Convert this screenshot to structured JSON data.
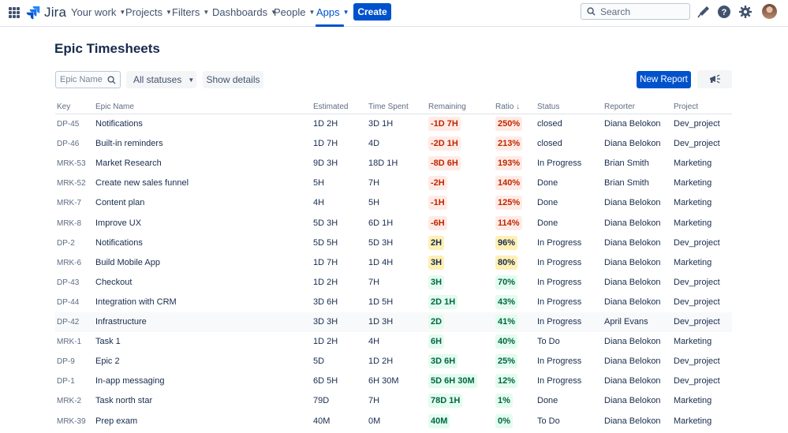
{
  "nav": {
    "logo_text": "Jira",
    "items": [
      "Your work",
      "Projects",
      "Filters",
      "Dashboards",
      "People",
      "Apps"
    ],
    "create_label": "Create",
    "search_placeholder": "Search"
  },
  "page": {
    "title": "Epic Timesheets",
    "filter_placeholder": "Epic Name",
    "status_filter": "All statuses",
    "show_details_label": "Show details",
    "new_report_label": "New Report"
  },
  "colors": {
    "brand": "#0052cc",
    "red": "#bf2600",
    "yellow": "#fff0b3",
    "green": "#006644"
  },
  "table": {
    "headers": [
      "Key",
      "Epic Name",
      "Estimated",
      "Time Spent",
      "Remaining",
      "Ratio ↓",
      "Status",
      "Reporter",
      "Project"
    ],
    "rows": [
      {
        "key": "DP-45",
        "name": "Notifications",
        "est": "1D 2H",
        "spent": "3D 1H",
        "rem": "-1D 7H",
        "ratio": "250%",
        "tone": "red",
        "status": "closed",
        "reporter": "Diana Belokon",
        "project": "Dev_project"
      },
      {
        "key": "DP-46",
        "name": "Built-in reminders",
        "est": "1D 7H",
        "spent": "4D",
        "rem": "-2D 1H",
        "ratio": "213%",
        "tone": "red",
        "status": "closed",
        "reporter": "Diana Belokon",
        "project": "Dev_project"
      },
      {
        "key": "MRK-53",
        "name": "Market Research",
        "est": "9D 3H",
        "spent": "18D 1H",
        "rem": "-8D 6H",
        "ratio": "193%",
        "tone": "red",
        "status": "In Progress",
        "reporter": "Brian Smith",
        "project": "Marketing"
      },
      {
        "key": "MRK-52",
        "name": "Create new sales funnel",
        "est": "5H",
        "spent": "7H",
        "rem": "-2H",
        "ratio": "140%",
        "tone": "red",
        "status": "Done",
        "reporter": "Brian Smith",
        "project": "Marketing"
      },
      {
        "key": "MRK-7",
        "name": "Content plan",
        "est": "4H",
        "spent": "5H",
        "rem": "-1H",
        "ratio": "125%",
        "tone": "red",
        "status": "Done",
        "reporter": "Diana Belokon",
        "project": "Marketing"
      },
      {
        "key": "MRK-8",
        "name": "Improve UX",
        "est": "5D 3H",
        "spent": "6D 1H",
        "rem": "-6H",
        "ratio": "114%",
        "tone": "red",
        "status": "Done",
        "reporter": "Diana Belokon",
        "project": "Marketing"
      },
      {
        "key": "DP-2",
        "name": "Notifications",
        "est": "5D 5H",
        "spent": "5D 3H",
        "rem": "2H",
        "ratio": "96%",
        "tone": "yellow",
        "status": "In Progress",
        "reporter": "Diana Belokon",
        "project": "Dev_project"
      },
      {
        "key": "MRK-6",
        "name": "Build Mobile App",
        "est": "1D 7H",
        "spent": "1D 4H",
        "rem": "3H",
        "ratio": "80%",
        "tone": "yellow",
        "status": "In Progress",
        "reporter": "Diana Belokon",
        "project": "Marketing"
      },
      {
        "key": "DP-43",
        "name": "Checkout",
        "est": "1D 2H",
        "spent": "7H",
        "rem": "3H",
        "ratio": "70%",
        "tone": "green",
        "status": "In Progress",
        "reporter": "Diana Belokon",
        "project": "Dev_project"
      },
      {
        "key": "DP-44",
        "name": "Integration with CRM",
        "est": "3D 6H",
        "spent": "1D 5H",
        "rem": "2D 1H",
        "ratio": "43%",
        "tone": "green",
        "status": "In Progress",
        "reporter": "Diana Belokon",
        "project": "Dev_project"
      },
      {
        "key": "DP-42",
        "name": "Infrastructure",
        "est": "3D 3H",
        "spent": "1D 3H",
        "rem": "2D",
        "ratio": "41%",
        "tone": "green",
        "status": "In Progress",
        "reporter": "April Evans",
        "project": "Dev_project"
      },
      {
        "key": "MRK-1",
        "name": "Task 1",
        "est": "1D 2H",
        "spent": "4H",
        "rem": "6H",
        "ratio": "40%",
        "tone": "green",
        "status": "To Do",
        "reporter": "Diana Belokon",
        "project": "Marketing"
      },
      {
        "key": "DP-9",
        "name": "Epic 2",
        "est": "5D",
        "spent": "1D 2H",
        "rem": "3D 6H",
        "ratio": "25%",
        "tone": "green",
        "status": "In Progress",
        "reporter": "Diana Belokon",
        "project": "Dev_project"
      },
      {
        "key": "DP-1",
        "name": "In-app messaging",
        "est": "6D 5H",
        "spent": "6H 30M",
        "rem": "5D 6H 30M",
        "ratio": "12%",
        "tone": "green",
        "status": "In Progress",
        "reporter": "Diana Belokon",
        "project": "Dev_project"
      },
      {
        "key": "MRK-2",
        "name": "Task north star",
        "est": "79D",
        "spent": "7H",
        "rem": "78D 1H",
        "ratio": "1%",
        "tone": "green",
        "status": "Done",
        "reporter": "Diana Belokon",
        "project": "Marketing"
      },
      {
        "key": "MRK-39",
        "name": "Prep exam",
        "est": "40M",
        "spent": "0M",
        "rem": "40M",
        "ratio": "0%",
        "tone": "green",
        "status": "To Do",
        "reporter": "Diana Belokon",
        "project": "Marketing"
      }
    ]
  }
}
